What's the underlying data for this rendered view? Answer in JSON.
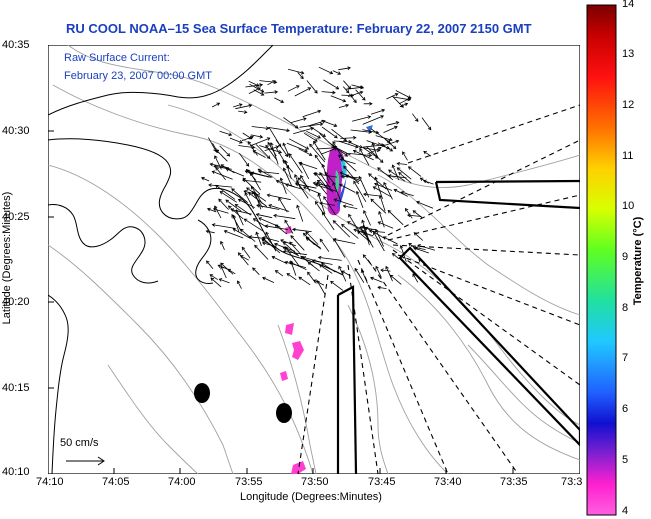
{
  "title": "RU COOL  NOAA–15  Sea Surface Temperature:  February 22, 2007 2150 GMT",
  "legend": {
    "line1": "Raw Surface Current:",
    "line2": "February 23, 2007 00:00 GMT"
  },
  "y_axis": {
    "label": "Latitude (Degrees:Minutes)",
    "ticks": [
      "40:35",
      "40:30",
      "40:25",
      "40:20",
      "40:15",
      "40:10"
    ]
  },
  "x_axis": {
    "label": "Longitude (Degrees:Minutes)",
    "ticks": [
      "74:10",
      "74:05",
      "74:00",
      "73:55",
      "73:50",
      "73:45",
      "73:40",
      "73:35",
      "73:3"
    ]
  },
  "colorbar": {
    "title": "Temperature (°C)",
    "ticks": [
      "14",
      "13",
      "12",
      "11",
      "10",
      "9",
      "8",
      "7",
      "6",
      "5",
      "4"
    ],
    "min": 4,
    "max": 14
  },
  "scale_vector": "50 cm/s",
  "colors": {
    "title": "#1a3fbf",
    "contour": "#9a9a9a",
    "coast": "#000000"
  }
}
